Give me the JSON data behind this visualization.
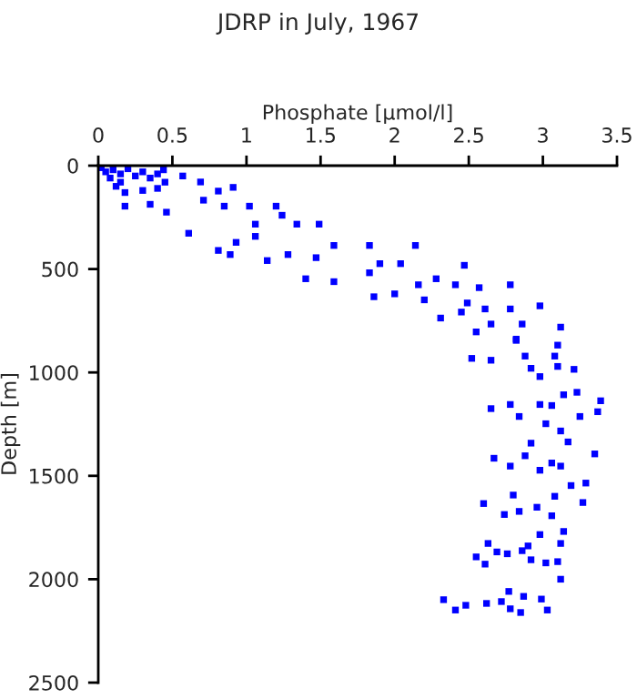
{
  "chart_data": {
    "type": "scatter",
    "title": "JDRP in July, 1967",
    "xlabel": "Phosphate [µmol/l]",
    "ylabel": "Depth [m]",
    "xlim": [
      0,
      3.5
    ],
    "xticks": [
      0,
      0.5,
      1,
      1.5,
      2,
      2.5,
      3,
      3.5
    ],
    "ylim": [
      2500,
      0
    ],
    "yticks": [
      0,
      500,
      1000,
      1500,
      2000,
      2500
    ],
    "marker": "square",
    "grid": false,
    "legend": false,
    "series": [
      {
        "color": "#0000ff",
        "x": [
          0.02,
          0.05,
          0.1,
          0.15,
          0.2,
          0.25,
          0.3,
          0.35,
          0.4,
          0.45,
          0.08,
          0.12,
          0.18,
          0.3,
          0.4,
          0.15,
          0.18,
          0.35,
          0.61,
          0.46,
          0.81,
          0.89,
          0.93,
          1.06,
          0.81,
          0.91,
          1.02,
          1.06,
          1.2,
          1.24,
          1.34,
          1.14,
          1.28,
          1.4,
          1.59,
          1.49,
          1.59,
          1.47,
          1.83,
          1.86,
          1.9,
          1.83,
          2.04,
          2.0,
          2.14,
          2.16,
          2.2,
          2.28,
          2.31,
          2.47,
          2.41,
          2.49,
          2.45,
          2.57,
          2.61,
          2.65,
          2.78,
          2.78,
          2.86,
          2.98,
          2.82,
          3.12,
          3.1,
          0.69,
          0.57,
          0.44,
          0.71,
          0.85,
          2.55,
          2.82,
          2.52,
          2.65,
          2.88,
          3.08,
          2.92,
          3.1,
          3.21,
          2.98,
          2.65,
          2.78,
          2.84,
          2.98,
          3.06,
          3.14,
          3.23,
          3.25,
          3.37,
          3.39,
          3.02,
          3.12,
          2.92,
          3.17,
          2.67,
          2.88,
          2.78,
          2.98,
          3.06,
          3.12,
          3.35,
          3.19,
          3.29,
          2.8,
          2.6,
          2.74,
          2.84,
          2.96,
          3.06,
          3.27,
          3.08,
          3.14,
          2.98,
          2.63,
          2.9,
          3.12,
          2.69,
          2.55,
          2.61,
          2.76,
          2.86,
          2.92,
          3.02,
          3.1,
          3.12,
          2.33,
          2.41,
          2.48,
          2.62,
          2.72,
          2.77,
          2.78,
          2.85,
          2.87,
          2.99,
          3.03
        ],
        "values": [
          10,
          30,
          20,
          40,
          15,
          50,
          30,
          60,
          40,
          80,
          60,
          100,
          130,
          120,
          110,
          80,
          196,
          187,
          327,
          225,
          410,
          430,
          371,
          342,
          123,
          105,
          196,
          283,
          196,
          240,
          283,
          459,
          430,
          547,
          561,
          283,
          386,
          445,
          386,
          634,
          474,
          518,
          474,
          620,
          386,
          576,
          649,
          547,
          737,
          482,
          576,
          664,
          708,
          590,
          693,
          766,
          576,
          693,
          766,
          678,
          839,
          781,
          868,
          79,
          50,
          20,
          167,
          196,
          804,
          845,
          932,
          941,
          921,
          921,
          980,
          971,
          985,
          1020,
          1175,
          1155,
          1213,
          1155,
          1160,
          1108,
          1096,
          1213,
          1190,
          1137,
          1248,
          1283,
          1342,
          1336,
          1415,
          1403,
          1453,
          1473,
          1438,
          1453,
          1394,
          1547,
          1535,
          1593,
          1634,
          1687,
          1672,
          1652,
          1693,
          1629,
          1599,
          1769,
          1784,
          1827,
          1839,
          1827,
          1868,
          1892,
          1927,
          1877,
          1862,
          1906,
          1921,
          1915,
          2000,
          2099,
          2149,
          2126,
          2117,
          2108,
          2059,
          2143,
          2161,
          2083,
          2096,
          2149
        ]
      }
    ]
  }
}
